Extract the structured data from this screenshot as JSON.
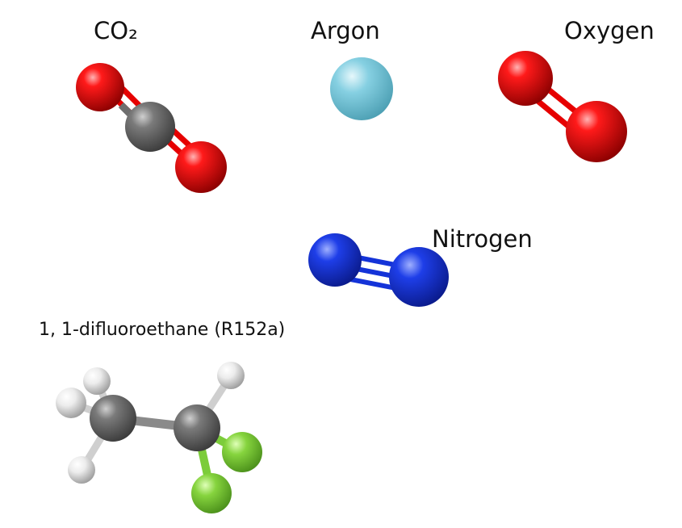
{
  "labels": {
    "co2": "CO₂",
    "argon": "Argon",
    "oxygen": "Oxygen",
    "nitrogen": "Nitrogen",
    "difluoroethane": "1, 1-difluoroethane (R152a)"
  },
  "colors": {
    "oxygen_atom": "#e60000",
    "carbon_atom": "#6e6e6e",
    "argon_atom": "#7fcde0",
    "nitrogen_atom": "#1433d8",
    "hydrogen_atom": "#e8e8e8",
    "fluorine_atom": "#7ccc3a"
  }
}
